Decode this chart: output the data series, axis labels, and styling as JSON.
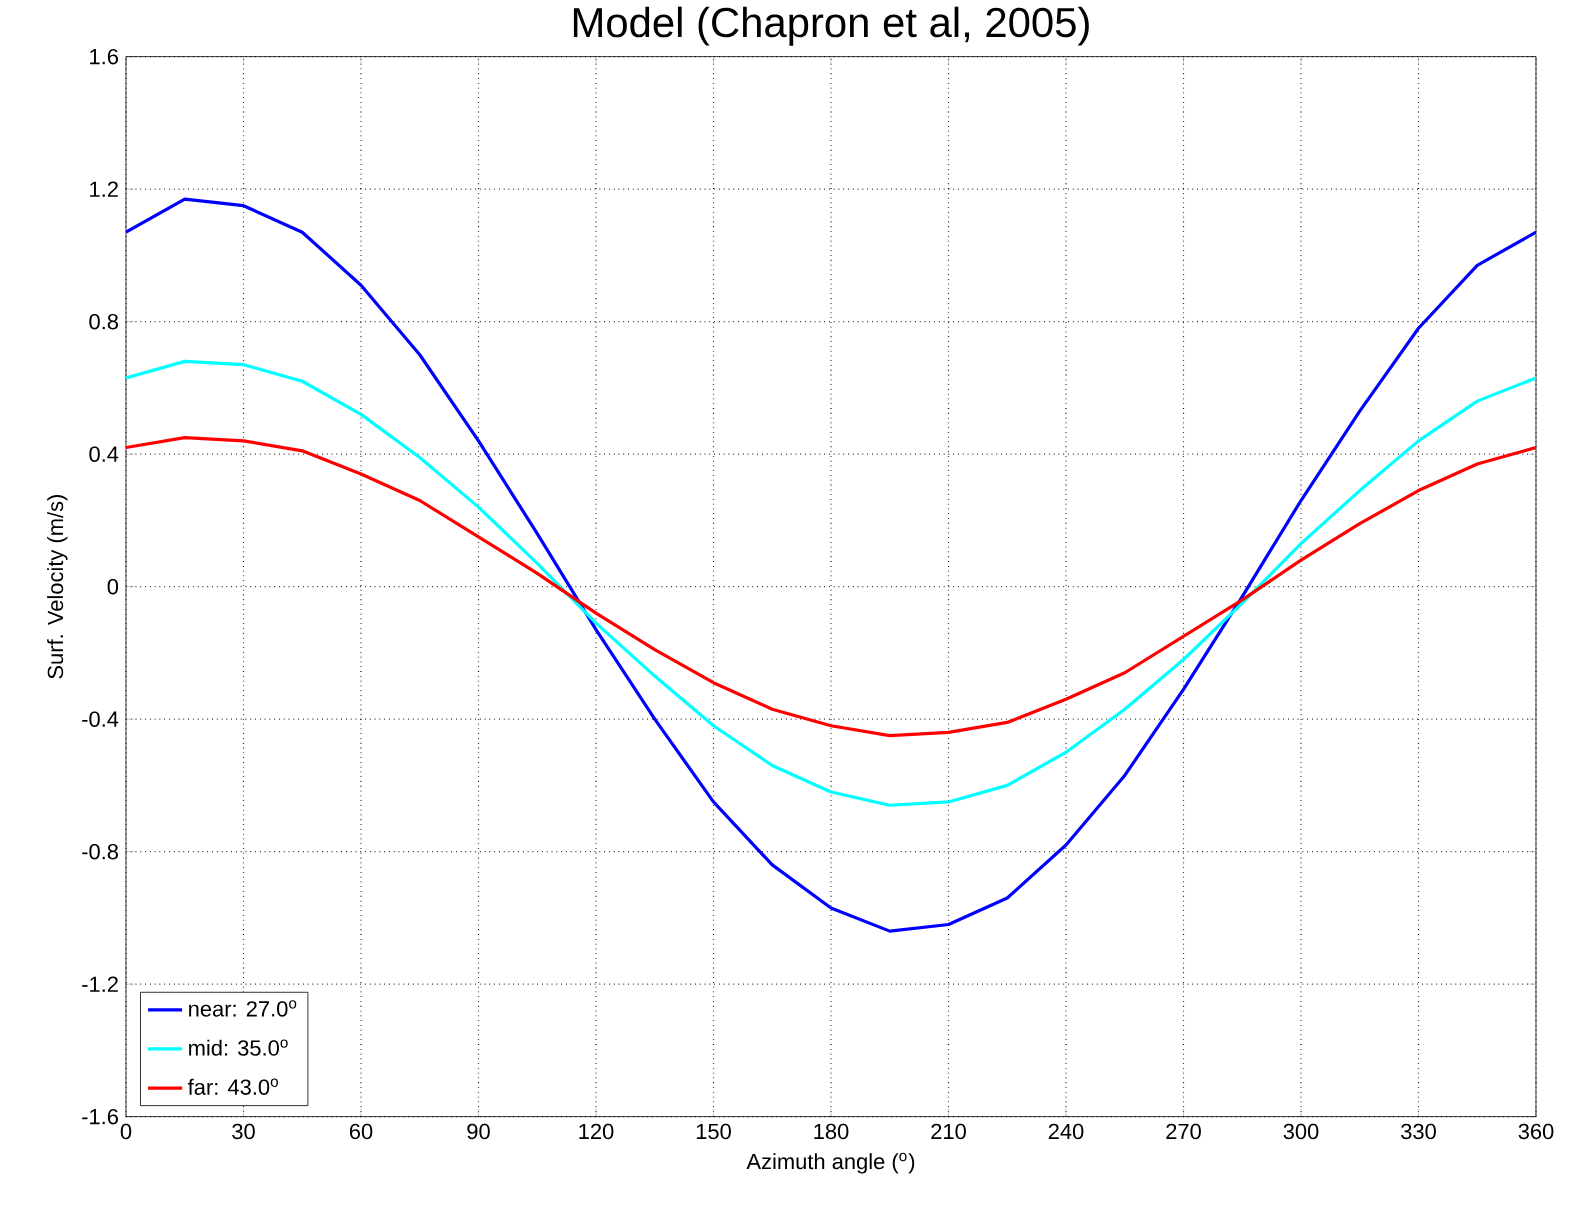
{
  "chart_data": {
    "type": "line",
    "title": "Model (Chapron et al, 2005)",
    "xlabel": "Azimuth angle ($^{o}$)",
    "ylabel": "Surf. Velocity (m/s)",
    "x": [
      0,
      15,
      30,
      45,
      60,
      75,
      90,
      105,
      120,
      135,
      150,
      165,
      180,
      195,
      210,
      225,
      240,
      255,
      270,
      285,
      300,
      315,
      330,
      345,
      360
    ],
    "series": [
      {
        "name": "near: 27.0$^{o}$",
        "color": "#0000ff",
        "values": [
          1.07,
          1.17,
          1.15,
          1.07,
          0.91,
          0.7,
          0.44,
          0.16,
          -0.13,
          -0.4,
          -0.65,
          -0.84,
          -0.97,
          -1.04,
          -1.02,
          -0.94,
          -0.78,
          -0.57,
          -0.31,
          -0.03,
          0.26,
          0.53,
          0.78,
          0.97,
          1.07
        ]
      },
      {
        "name": "mid:  35.0$^{o}$",
        "color": "#00ffff",
        "values": [
          0.63,
          0.68,
          0.67,
          0.62,
          0.52,
          0.39,
          0.24,
          0.07,
          -0.11,
          -0.27,
          -0.42,
          -0.54,
          -0.62,
          -0.66,
          -0.65,
          -0.6,
          -0.5,
          -0.37,
          -0.22,
          -0.05,
          0.13,
          0.29,
          0.44,
          0.56,
          0.63
        ]
      },
      {
        "name": "far:  43.0$^{o}$",
        "color": "#ff0000",
        "values": [
          0.42,
          0.45,
          0.44,
          0.41,
          0.34,
          0.26,
          0.15,
          0.04,
          -0.08,
          -0.19,
          -0.29,
          -0.37,
          -0.42,
          -0.45,
          -0.44,
          -0.41,
          -0.34,
          -0.26,
          -0.15,
          -0.04,
          0.08,
          0.19,
          0.29,
          0.37,
          0.42
        ]
      }
    ],
    "xlim": [
      0,
      360
    ],
    "ylim": [
      -1.6,
      1.6
    ],
    "xticks": [
      0,
      30,
      60,
      90,
      120,
      150,
      180,
      210,
      240,
      270,
      300,
      330,
      360
    ],
    "yticks": [
      -1.6,
      -1.2,
      -0.8,
      -0.4,
      0,
      0.4,
      0.8,
      1.2,
      1.6
    ],
    "grid": true,
    "legend": "bottom left",
    "line_style": "solid",
    "marker": "none"
  }
}
